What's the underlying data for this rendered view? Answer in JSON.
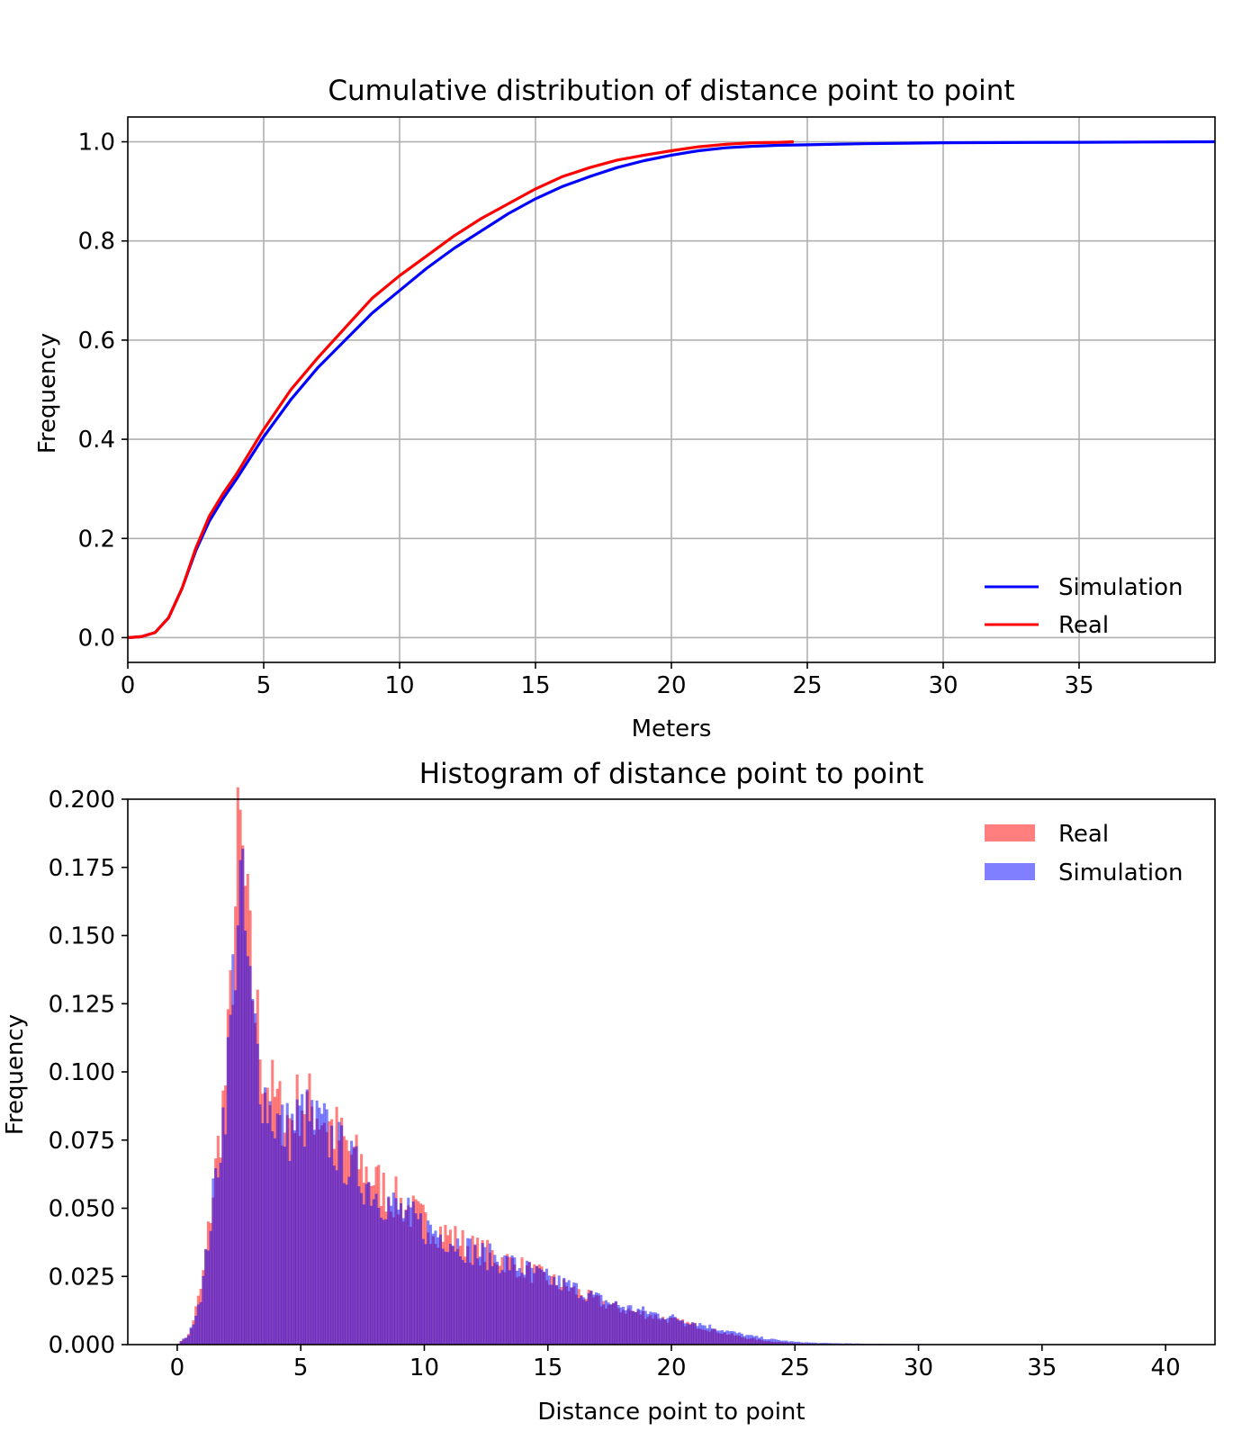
{
  "chart_data": [
    {
      "type": "line",
      "title": "Cumulative distribution of distance point to point",
      "xlabel": "Meters",
      "ylabel": "Frequency",
      "xlim": [
        0,
        40
      ],
      "ylim": [
        -0.05,
        1.05
      ],
      "xticks": [
        "0",
        "5",
        "10",
        "15",
        "20",
        "25",
        "30",
        "35"
      ],
      "yticks": [
        "0.0",
        "0.2",
        "0.4",
        "0.6",
        "0.8",
        "1.0"
      ],
      "grid": true,
      "legend": "lower-right",
      "series": [
        {
          "name": "Simulation",
          "color": "#0000ff",
          "x": [
            0,
            0.5,
            1,
            1.5,
            2,
            2.5,
            3,
            3.5,
            4,
            5,
            6,
            7,
            8,
            9,
            10,
            11,
            12,
            13,
            14,
            15,
            16,
            17,
            18,
            19,
            20,
            21,
            22,
            23,
            24,
            25,
            27,
            30,
            35,
            40
          ],
          "y": [
            0,
            0.002,
            0.01,
            0.04,
            0.1,
            0.175,
            0.235,
            0.28,
            0.32,
            0.405,
            0.48,
            0.545,
            0.6,
            0.655,
            0.7,
            0.745,
            0.785,
            0.82,
            0.855,
            0.885,
            0.91,
            0.93,
            0.948,
            0.962,
            0.973,
            0.982,
            0.988,
            0.991,
            0.993,
            0.994,
            0.996,
            0.998,
            0.999,
            1.0
          ]
        },
        {
          "name": "Real",
          "color": "#ff0000",
          "x": [
            0,
            0.5,
            1,
            1.5,
            2,
            2.5,
            3,
            3.5,
            4,
            5,
            6,
            7,
            8,
            9,
            10,
            11,
            12,
            13,
            14,
            15,
            16,
            17,
            18,
            19,
            20,
            21,
            22,
            23,
            24,
            24.5
          ],
          "y": [
            0,
            0.002,
            0.01,
            0.04,
            0.1,
            0.18,
            0.245,
            0.29,
            0.33,
            0.42,
            0.5,
            0.565,
            0.625,
            0.685,
            0.73,
            0.77,
            0.81,
            0.845,
            0.875,
            0.905,
            0.93,
            0.948,
            0.963,
            0.973,
            0.982,
            0.99,
            0.995,
            0.998,
            0.999,
            1.0
          ]
        }
      ]
    },
    {
      "type": "bar",
      "title": "Histogram of distance point to point",
      "xlabel": "Distance point to point",
      "ylabel": "Frequency",
      "xlim": [
        -2,
        42
      ],
      "ylim": [
        0,
        0.2
      ],
      "xticks": [
        "0",
        "5",
        "10",
        "15",
        "20",
        "25",
        "30",
        "35",
        "40"
      ],
      "yticks": [
        "0.000",
        "0.025",
        "0.050",
        "0.075",
        "0.100",
        "0.125",
        "0.150",
        "0.175",
        "0.200"
      ],
      "grid": false,
      "legend": "top-right",
      "bin_width": 0.1,
      "series": [
        {
          "name": "Real",
          "color": "#ff0000",
          "opacity": 0.5,
          "x": [
            0,
            0.5,
            1,
            1.5,
            2,
            2.3,
            2.5,
            2.7,
            3,
            3.5,
            4,
            4.5,
            5,
            6,
            7,
            8,
            9,
            10,
            11,
            12,
            13,
            14,
            15,
            16,
            17,
            18,
            19,
            20,
            21,
            22,
            23,
            24,
            25,
            26,
            28,
            30,
            31
          ],
          "y": [
            0,
            0.004,
            0.022,
            0.06,
            0.1,
            0.15,
            0.19,
            0.17,
            0.135,
            0.1,
            0.088,
            0.082,
            0.09,
            0.083,
            0.07,
            0.06,
            0.052,
            0.045,
            0.04,
            0.035,
            0.032,
            0.028,
            0.024,
            0.02,
            0.016,
            0.013,
            0.011,
            0.009,
            0.007,
            0.0045,
            0.0025,
            0.0012,
            0.0005,
            0.0002,
            0.0001,
            5e-05,
            0
          ]
        },
        {
          "name": "Simulation",
          "color": "#0000ff",
          "opacity": 0.5,
          "x": [
            0,
            0.5,
            1,
            1.5,
            2,
            2.3,
            2.5,
            2.7,
            3,
            3.5,
            4,
            4.5,
            5,
            6,
            7,
            8,
            9,
            10,
            11,
            12,
            13,
            14,
            15,
            16,
            17,
            18,
            19,
            20,
            21,
            22,
            23,
            24,
            25,
            26,
            28,
            30,
            31
          ],
          "y": [
            0,
            0.004,
            0.02,
            0.057,
            0.095,
            0.14,
            0.17,
            0.155,
            0.122,
            0.092,
            0.082,
            0.078,
            0.084,
            0.078,
            0.066,
            0.056,
            0.049,
            0.043,
            0.039,
            0.034,
            0.031,
            0.028,
            0.024,
            0.021,
            0.017,
            0.014,
            0.012,
            0.01,
            0.008,
            0.0055,
            0.0035,
            0.002,
            0.001,
            0.0006,
            0.0003,
            0.0002,
            5e-05
          ]
        }
      ]
    }
  ]
}
